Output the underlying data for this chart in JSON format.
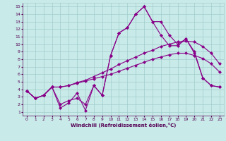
{
  "xlabel": "Windchill (Refroidissement éolien,°C)",
  "bg_color": "#c8eae8",
  "grid_color": "#a0cccc",
  "line_color": "#880088",
  "xlim": [
    -0.5,
    23.5
  ],
  "ylim": [
    0.5,
    15.5
  ],
  "xticks": [
    0,
    1,
    2,
    3,
    4,
    5,
    6,
    7,
    8,
    9,
    10,
    11,
    12,
    13,
    14,
    15,
    16,
    17,
    18,
    19,
    20,
    21,
    22,
    23
  ],
  "yticks": [
    1,
    2,
    3,
    4,
    5,
    6,
    7,
    8,
    9,
    10,
    11,
    12,
    13,
    14,
    15
  ],
  "line1_x": [
    0,
    1,
    2,
    3,
    4,
    5,
    6,
    7,
    8,
    9,
    10,
    11,
    12,
    13,
    14,
    15,
    16,
    17,
    18,
    19,
    20,
    21,
    22,
    23
  ],
  "line1_y": [
    3.8,
    2.8,
    3.2,
    4.3,
    4.3,
    4.5,
    4.8,
    5.1,
    5.4,
    5.7,
    6.0,
    6.4,
    6.8,
    7.2,
    7.6,
    8.0,
    8.3,
    8.6,
    8.8,
    8.8,
    8.5,
    8.1,
    7.4,
    6.3
  ],
  "line2_x": [
    0,
    1,
    2,
    3,
    4,
    5,
    6,
    7,
    8,
    9,
    10,
    11,
    12,
    13,
    14,
    15,
    16,
    17,
    18,
    19,
    20,
    21,
    22,
    23
  ],
  "line2_y": [
    3.8,
    2.8,
    3.2,
    4.3,
    4.3,
    4.5,
    4.9,
    5.2,
    5.7,
    6.2,
    6.7,
    7.3,
    7.8,
    8.3,
    8.8,
    9.2,
    9.7,
    10.0,
    10.3,
    10.4,
    10.3,
    9.7,
    8.8,
    7.4
  ],
  "line3_x": [
    0,
    1,
    2,
    3,
    4,
    5,
    6,
    7,
    8,
    9,
    10,
    11,
    12,
    13,
    14,
    15,
    16,
    17,
    18,
    19,
    20,
    21,
    22,
    23
  ],
  "line3_y": [
    3.8,
    2.8,
    3.2,
    4.3,
    2.0,
    2.5,
    2.8,
    2.0,
    4.5,
    3.2,
    8.5,
    11.5,
    12.2,
    14.0,
    15.0,
    13.0,
    13.0,
    11.2,
    10.0,
    10.7,
    9.0,
    5.5,
    4.5,
    4.3
  ],
  "line4_x": [
    0,
    1,
    2,
    3,
    4,
    5,
    6,
    7,
    8,
    9,
    10,
    11,
    12,
    13,
    14,
    15,
    16,
    17,
    18,
    19,
    20,
    21,
    22,
    23
  ],
  "line4_y": [
    3.8,
    2.8,
    3.2,
    4.3,
    1.5,
    2.2,
    3.5,
    1.2,
    4.5,
    3.2,
    8.5,
    11.5,
    12.2,
    14.0,
    15.0,
    13.0,
    11.2,
    9.8,
    9.8,
    10.7,
    8.8,
    5.5,
    4.5,
    4.3
  ]
}
